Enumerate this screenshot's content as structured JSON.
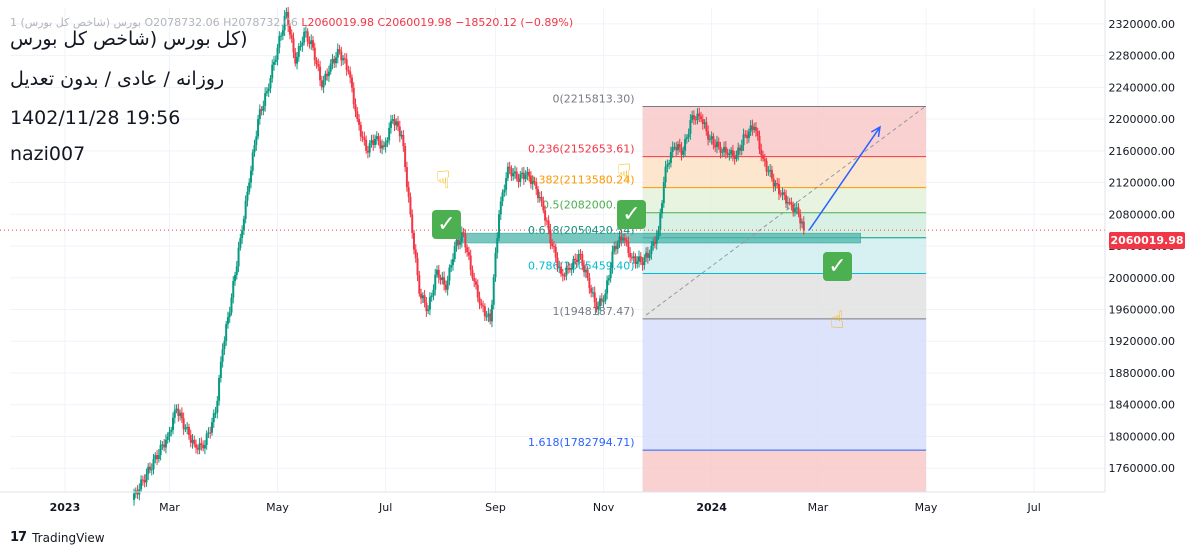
{
  "header": {
    "ohlc_prefix": "1",
    "symbol_faded": "(شاخص کل بورس) بورس",
    "open": "O2078732.06",
    "high": "H2078732.06",
    "low": "L2060019.98",
    "close": "C2060019.98",
    "change": "−18520.12 (−0.89%)"
  },
  "notes": {
    "line1": "(کل بورس (شاخص کل بورس",
    "line2": "روزانه / عادی / بدون تعدیل",
    "line3": "1402/11/28 19:56",
    "line4": "nazi007"
  },
  "current_price_label": "2060019.98",
  "footer": {
    "logo": "17",
    "brand": "TradingView"
  },
  "colors": {
    "up": "#089981",
    "down": "#f23645",
    "accent_blue": "#2962ff",
    "zone": "#4db6ac"
  },
  "chart_data": {
    "type": "candlestick",
    "title": "",
    "xlabel": "",
    "ylabel": "",
    "ylim": [
      1730000,
      2340000
    ],
    "y_ticks": [
      1760000,
      1800000,
      1840000,
      1880000,
      1920000,
      1960000,
      2000000,
      2040000,
      2080000,
      2120000,
      2160000,
      2200000,
      2240000,
      2280000,
      2320000
    ],
    "y_tick_labels": [
      "1760000.00",
      "1800000.00",
      "1840000.00",
      "1880000.00",
      "1920000.00",
      "1960000.00",
      "2000000.00",
      "2040000.00",
      "2080000.00",
      "2120000.00",
      "2160000.00",
      "2200000.00",
      "2240000.00",
      "2280000.00",
      "2320000.00"
    ],
    "x_ticks": [
      {
        "label": "2023",
        "date": "2023-01-01",
        "bold": true
      },
      {
        "label": "Mar",
        "date": "2023-03-01",
        "bold": false
      },
      {
        "label": "May",
        "date": "2023-05-01",
        "bold": false
      },
      {
        "label": "Jul",
        "date": "2023-07-01",
        "bold": false
      },
      {
        "label": "Sep",
        "date": "2023-09-01",
        "bold": false
      },
      {
        "label": "Nov",
        "date": "2023-11-01",
        "bold": false
      },
      {
        "label": "2024",
        "date": "2024-01-01",
        "bold": true
      },
      {
        "label": "Mar",
        "date": "2024-03-01",
        "bold": false
      },
      {
        "label": "May",
        "date": "2024-05-01",
        "bold": false
      },
      {
        "label": "Jul",
        "date": "2024-07-01",
        "bold": false
      }
    ],
    "x_range": [
      "2022-12-01",
      "2024-08-10"
    ],
    "series_points": [
      {
        "date": "2023-02-08",
        "close": 1720000
      },
      {
        "date": "2023-02-28",
        "close": 1800000
      },
      {
        "date": "2023-03-05",
        "close": 1835000
      },
      {
        "date": "2023-03-10",
        "close": 1810000
      },
      {
        "date": "2023-03-15",
        "close": 1790000
      },
      {
        "date": "2023-03-20",
        "close": 1785000
      },
      {
        "date": "2023-03-27",
        "close": 1830000
      },
      {
        "date": "2023-03-31",
        "close": 1910000
      },
      {
        "date": "2023-04-05",
        "close": 1975000
      },
      {
        "date": "2023-04-10",
        "close": 2050000
      },
      {
        "date": "2023-04-15",
        "close": 2120000
      },
      {
        "date": "2023-04-20",
        "close": 2200000
      },
      {
        "date": "2023-04-25",
        "close": 2235000
      },
      {
        "date": "2023-05-01",
        "close": 2290000
      },
      {
        "date": "2023-05-06",
        "close": 2335000
      },
      {
        "date": "2023-05-11",
        "close": 2270000
      },
      {
        "date": "2023-05-16",
        "close": 2310000
      },
      {
        "date": "2023-05-21",
        "close": 2290000
      },
      {
        "date": "2023-05-26",
        "close": 2240000
      },
      {
        "date": "2023-05-31",
        "close": 2270000
      },
      {
        "date": "2023-06-05",
        "close": 2285000
      },
      {
        "date": "2023-06-10",
        "close": 2260000
      },
      {
        "date": "2023-06-15",
        "close": 2200000
      },
      {
        "date": "2023-06-20",
        "close": 2160000
      },
      {
        "date": "2023-06-25",
        "close": 2175000
      },
      {
        "date": "2023-06-30",
        "close": 2165000
      },
      {
        "date": "2023-07-05",
        "close": 2200000
      },
      {
        "date": "2023-07-10",
        "close": 2180000
      },
      {
        "date": "2023-07-15",
        "close": 2080000
      },
      {
        "date": "2023-07-20",
        "close": 1980000
      },
      {
        "date": "2023-07-25",
        "close": 1960000
      },
      {
        "date": "2023-07-30",
        "close": 2010000
      },
      {
        "date": "2023-08-04",
        "close": 1985000
      },
      {
        "date": "2023-08-09",
        "close": 2040000
      },
      {
        "date": "2023-08-14",
        "close": 2055000
      },
      {
        "date": "2023-08-19",
        "close": 2000000
      },
      {
        "date": "2023-08-24",
        "close": 1965000
      },
      {
        "date": "2023-08-29",
        "close": 1945000
      },
      {
        "date": "2023-09-03",
        "close": 2080000
      },
      {
        "date": "2023-09-08",
        "close": 2140000
      },
      {
        "date": "2023-09-13",
        "close": 2125000
      },
      {
        "date": "2023-09-18",
        "close": 2130000
      },
      {
        "date": "2023-09-23",
        "close": 2120000
      },
      {
        "date": "2023-09-28",
        "close": 2085000
      },
      {
        "date": "2023-10-03",
        "close": 2040000
      },
      {
        "date": "2023-10-08",
        "close": 2005000
      },
      {
        "date": "2023-10-13",
        "close": 2010000
      },
      {
        "date": "2023-10-18",
        "close": 2030000
      },
      {
        "date": "2023-10-23",
        "close": 2000000
      },
      {
        "date": "2023-10-28",
        "close": 1960000
      },
      {
        "date": "2023-11-02",
        "close": 1980000
      },
      {
        "date": "2023-11-07",
        "close": 2040000
      },
      {
        "date": "2023-11-12",
        "close": 2050000
      },
      {
        "date": "2023-11-17",
        "close": 2025000
      },
      {
        "date": "2023-11-22",
        "close": 2020000
      },
      {
        "date": "2023-11-27",
        "close": 2030000
      },
      {
        "date": "2023-12-02",
        "close": 2060000
      },
      {
        "date": "2023-12-06",
        "close": 2140000
      },
      {
        "date": "2023-12-11",
        "close": 2165000
      },
      {
        "date": "2023-12-16",
        "close": 2160000
      },
      {
        "date": "2023-12-21",
        "close": 2205000
      },
      {
        "date": "2023-12-26",
        "close": 2200000
      },
      {
        "date": "2023-12-31",
        "close": 2175000
      },
      {
        "date": "2024-01-05",
        "close": 2165000
      },
      {
        "date": "2024-01-10",
        "close": 2155000
      },
      {
        "date": "2024-01-15",
        "close": 2155000
      },
      {
        "date": "2024-01-20",
        "close": 2180000
      },
      {
        "date": "2024-01-25",
        "close": 2190000
      },
      {
        "date": "2024-01-30",
        "close": 2150000
      },
      {
        "date": "2024-02-04",
        "close": 2125000
      },
      {
        "date": "2024-02-09",
        "close": 2105000
      },
      {
        "date": "2024-02-14",
        "close": 2095000
      },
      {
        "date": "2024-02-19",
        "close": 2080000
      },
      {
        "date": "2024-02-22",
        "close": 2060019.98
      }
    ],
    "fibonacci": {
      "start_date": "2023-11-23",
      "end_date": "2024-05-01",
      "levels": [
        {
          "ratio": "0",
          "price": 2215813.3,
          "label": "0(2215813.30)",
          "color": "#787b86",
          "fill": "#f7c5c5"
        },
        {
          "ratio": "0.236",
          "price": 2152653.61,
          "label": "0.236(2152653.61)",
          "color": "#f23645",
          "fill": "#fde0c2"
        },
        {
          "ratio": "0.382",
          "price": 2113580.24,
          "label": "0.382(2113580.24)",
          "color": "#ff9800",
          "fill": "#e3f1d8"
        },
        {
          "ratio": "0.5",
          "price": 2082000.39,
          "label": "0.5(2082000.39)",
          "color": "#4caf50",
          "fill": "#cfeede"
        },
        {
          "ratio": "0.618",
          "price": 2050420.54,
          "label": "0.618(2050420.54)",
          "color": "#089981",
          "fill": "#cdeef0"
        },
        {
          "ratio": "0.786",
          "price": 2005459.4,
          "label": "0.786(2005459.40)",
          "color": "#00bcd4",
          "fill": "#e0e0e0"
        },
        {
          "ratio": "1",
          "price": 1948187.47,
          "label": "1(1948187.47)",
          "color": "#787b86",
          "fill": "#d4dcf9"
        },
        {
          "ratio": "1.618",
          "price": 1782794.71,
          "label": "1.618(1782794.71)",
          "color": "#2962ff",
          "fill": null
        }
      ]
    },
    "support_zone": {
      "start_date": "2023-08-10",
      "end_date": "2024-03-25",
      "low": 2044000,
      "high": 2056000
    },
    "trend_line": {
      "start_date": "2023-11-25",
      "start_price": 1953000,
      "end_date": "2024-04-30",
      "end_price": 2215000
    },
    "projection_arrow": {
      "start_date": "2024-02-25",
      "start_price": 2060000,
      "end_date": "2024-04-05",
      "end_price": 2190000
    },
    "current_price": 2060019.98
  },
  "icons": [
    "check-icon",
    "pointing-hand-icon",
    "tradingview-logo-icon"
  ]
}
